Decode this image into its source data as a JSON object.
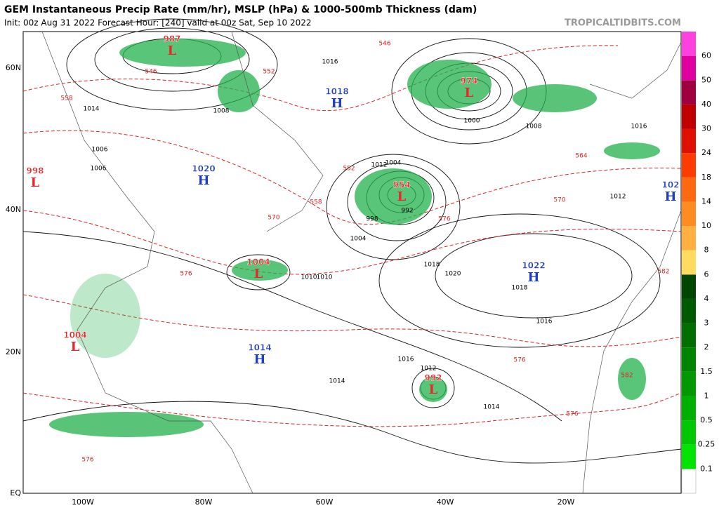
{
  "header": {
    "title": "GEM Instantaneous Precip Rate (mm/hr), MSLP (hPa) & 1000-500mb Thickness (dam)",
    "subtitle": "Init: 00z Aug 31 2022   Forecast Hour: [240]   valid at 00z Sat, Sep 10 2022",
    "credit": "TROPICALTIDBITS.COM"
  },
  "axes": {
    "lat_labels": [
      "60N",
      "40N",
      "20N",
      "EQ"
    ],
    "lon_labels": [
      "100W",
      "80W",
      "60W",
      "40W",
      "20W"
    ]
  },
  "colorbar": {
    "labels": [
      "0.1",
      "0.25",
      "0.5",
      "1",
      "1.5",
      "2",
      "3",
      "4",
      "6",
      "8",
      "10",
      "14",
      "18",
      "24",
      "30",
      "40",
      "50",
      "60"
    ],
    "colors": [
      "#00e400",
      "#00c800",
      "#00b000",
      "#009a00",
      "#008400",
      "#006e00",
      "#005a00",
      "#004600",
      "#ffdc60",
      "#ffb040",
      "#ff8c20",
      "#ff6a10",
      "#ff3c00",
      "#e01000",
      "#c00000",
      "#a00040",
      "#e000a0",
      "#ff40e0"
    ]
  },
  "centers": [
    {
      "symbol": "L",
      "value": "987"
    },
    {
      "symbol": "L",
      "value": "974"
    },
    {
      "symbol": "H",
      "value": "1018"
    },
    {
      "symbol": "L",
      "value": "998"
    },
    {
      "symbol": "H",
      "value": "1020"
    },
    {
      "symbol": "L",
      "value": "954"
    },
    {
      "symbol": "H",
      "value": "1022"
    },
    {
      "symbol": "L",
      "value": "1004"
    },
    {
      "symbol": "H",
      "value": "102"
    },
    {
      "symbol": "L",
      "value": "1004"
    },
    {
      "symbol": "H",
      "value": "1014"
    },
    {
      "symbol": "L",
      "value": "992"
    }
  ],
  "isobar_labels": [
    "1016",
    "1014",
    "1008",
    "1006",
    "1012",
    "1010",
    "1018",
    "1020",
    "1004",
    "992",
    "1008",
    "1016",
    "1012",
    "1014",
    "1016",
    "1018",
    "1016",
    "1014",
    "1012",
    "1010",
    "1006",
    "1004",
    "1000",
    "998"
  ],
  "thickness_labels": [
    "546",
    "552",
    "558",
    "570",
    "576",
    "564",
    "582",
    "576",
    "570",
    "558",
    "552",
    "546",
    "576",
    "576",
    "582",
    "576"
  ]
}
